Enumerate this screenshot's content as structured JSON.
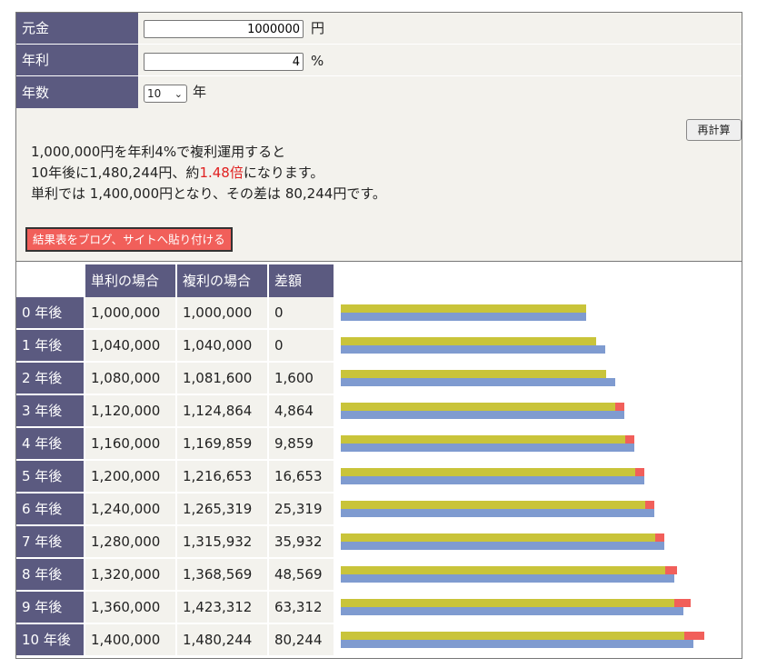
{
  "form": {
    "principal": {
      "label": "元金",
      "value": "1000000",
      "unit": "円"
    },
    "rate": {
      "label": "年利",
      "value": "4",
      "unit": "%"
    },
    "years": {
      "label": "年数",
      "value": "10",
      "unit": "年"
    }
  },
  "result": {
    "recalc_label": "再計算",
    "line1": "1,000,000円を年利4%で複利運用すると",
    "line2_pre": "10年後に1,480,244円、約",
    "line2_highlight": "1.48倍",
    "line2_post": "になります。",
    "line3": "単利では 1,400,000円となり、その差は 80,244円です。",
    "blog_button_label": "結果表をブログ、サイトへ貼り付ける"
  },
  "table": {
    "headers": [
      "",
      "単利の場合",
      "複利の場合",
      "差額"
    ],
    "rows": [
      {
        "year": "0 年後",
        "simple": "1,000,000",
        "compound": "1,000,000",
        "diff": "0"
      },
      {
        "year": "1 年後",
        "simple": "1,040,000",
        "compound": "1,040,000",
        "diff": "0"
      },
      {
        "year": "2 年後",
        "simple": "1,080,000",
        "compound": "1,081,600",
        "diff": "1,600"
      },
      {
        "year": "3 年後",
        "simple": "1,120,000",
        "compound": "1,124,864",
        "diff": "4,864"
      },
      {
        "year": "4 年後",
        "simple": "1,160,000",
        "compound": "1,169,859",
        "diff": "9,859"
      },
      {
        "year": "5 年後",
        "simple": "1,200,000",
        "compound": "1,216,653",
        "diff": "16,653"
      },
      {
        "year": "6 年後",
        "simple": "1,240,000",
        "compound": "1,265,319",
        "diff": "25,319"
      },
      {
        "year": "7 年後",
        "simple": "1,280,000",
        "compound": "1,315,932",
        "diff": "35,932"
      },
      {
        "year": "8 年後",
        "simple": "1,320,000",
        "compound": "1,368,569",
        "diff": "48,569"
      },
      {
        "year": "9 年後",
        "simple": "1,360,000",
        "compound": "1,423,312",
        "diff": "63,312"
      },
      {
        "year": "10 年後",
        "simple": "1,400,000",
        "compound": "1,480,244",
        "diff": "80,244"
      }
    ]
  },
  "colors": {
    "header_bg": "#5b5a80",
    "simple_bar": "#c9c43a",
    "compound_bar": "#7f9bd0",
    "diff_bar": "#f15f5a",
    "highlight": "#e02020"
  }
}
